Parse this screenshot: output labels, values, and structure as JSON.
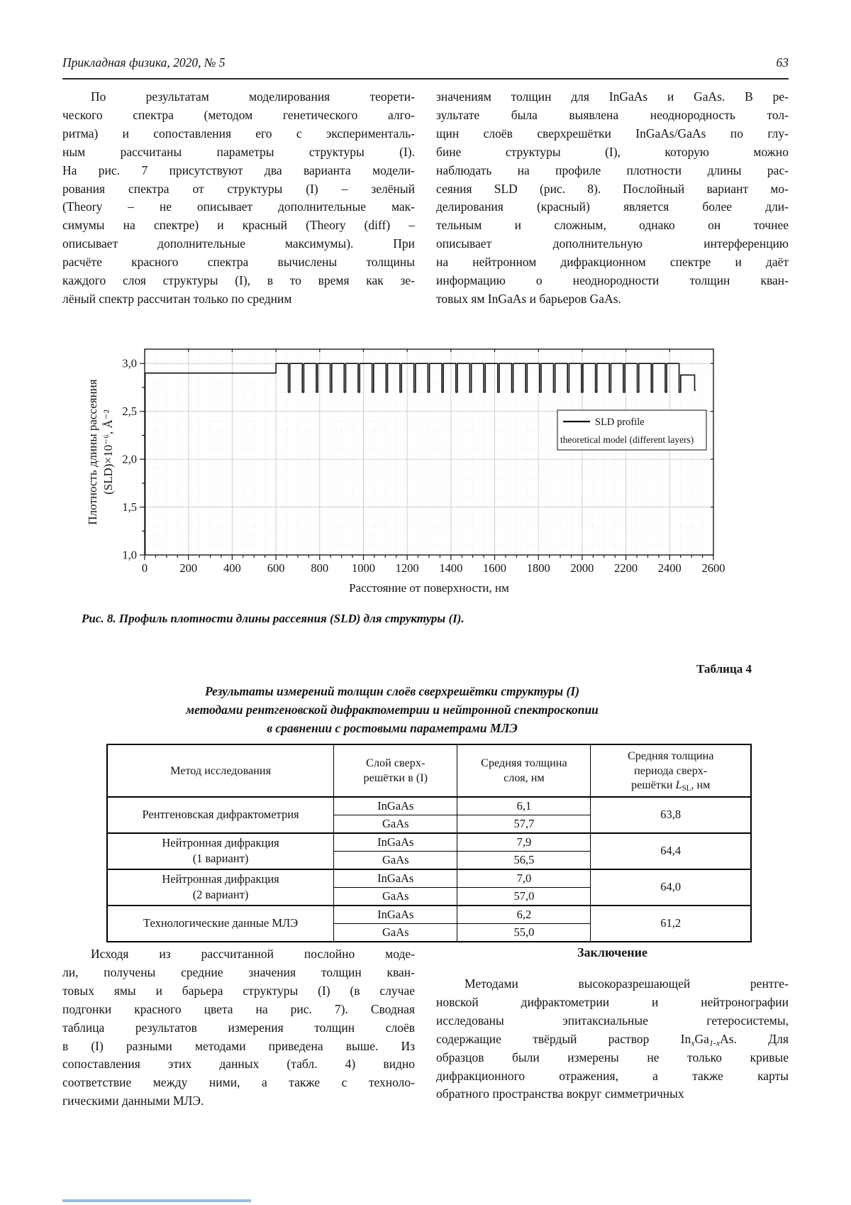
{
  "page": {
    "header_left": "Прикладная физика, 2020, № 5",
    "page_number": "63"
  },
  "top_left": {
    "lines": [
      "По результатам моделирования теорети-",
      "ческого спектра (методом генетического алго-",
      "ритма) и сопоставления его с эксперименталь-",
      "ным рассчитаны параметры структуры (I).",
      "На рис. 7 присутствуют два варианта модели-",
      "рования спектра от структуры (I) – зелёный",
      "(Theory – не описывает дополнительные мак-",
      "симумы на спектре) и красный (Theory (diff) –",
      "описывает дополнительные максимумы). При",
      "расчёте красного спектра вычислены толщины",
      "каждого слоя структуры (I), в то время как зе-",
      "лёный спектр рассчитан только по средним"
    ]
  },
  "top_right": {
    "lines": [
      "значениям толщин для InGaAs и GaAs. В ре-",
      "зультате была выявлена неоднородность тол-",
      "щин слоёв сверхрешётки InGaAs/GaAs по глу-",
      "бине структуры (I), которую можно",
      "наблюдать на профиле плотности длины рас-",
      "сеяния SLD (рис. 8). Послойный вариант мо-",
      "делирования (красный) является более дли-",
      "тельным и сложным, однако он точнее",
      "описывает дополнительную интерференцию",
      "на нейтронном дифракционном спектре и даёт",
      "информацию о неоднородности толщин кван-",
      "товых ям InGaAs и барьеров GaAs."
    ]
  },
  "figure": {
    "caption": "Рис. 8. Профиль плотности длины рассеяния (SLD) для структуры (I)."
  },
  "chart_data": {
    "type": "line",
    "title": "",
    "xlabel": "Расстояние от поверхности, нм",
    "ylabel": "Плотность длины рассеяния (SLD)×10⁻⁶, Å⁻²",
    "ylabel_lines": [
      "Плотность длины рассеяния",
      "(SLD)×10⁻⁶, Å⁻²"
    ],
    "xlim": [
      0,
      2600
    ],
    "ylim": [
      1.0,
      3.15
    ],
    "x_ticks": [
      0,
      200,
      400,
      600,
      800,
      1000,
      1200,
      1400,
      1600,
      1800,
      2000,
      2200,
      2400,
      2600
    ],
    "y_ticks": [
      1.0,
      1.5,
      2.0,
      2.5,
      3.0
    ],
    "grid": true,
    "legend": {
      "position": "inside-right",
      "line1": "SLD profile",
      "line2": "theoretical model (different layers)"
    },
    "line_color": "#101010",
    "profile": {
      "description": "SLD depth profile: GaAs cap 0–600 nm at 2.9; InGaAs/GaAs superlattice 600–2450 nm, 29 periods of 63.8 nm, GaAs barriers at 3.0 with narrow InGaAs wells dipping to 2.7; buffer plateau 2.88 to 2514 nm; tail drop to 2.72 at 2520 nm",
      "cap": {
        "x0": 2,
        "x1": 600,
        "sld": 2.9
      },
      "superlattice": {
        "x0": 600,
        "n_periods": 29,
        "period_nm": 63.8,
        "barrier_sld": 3.0,
        "well_sld": 2.7,
        "well_width_nm": 7
      },
      "buffer": {
        "sld": 2.88,
        "x1": 2514
      },
      "tail": {
        "sld": 2.72,
        "x1": 2520
      }
    }
  },
  "table": {
    "label": "Таблица 4",
    "title_lines": [
      "Результаты измерений толщин слоёв сверхрешётки структуры (I)",
      "методами рентгеновской дифрактометрии и нейтронной спектроскопии",
      "в сравнении с ростовыми параметрами МЛЭ"
    ],
    "headers": [
      "Метод исследования",
      [
        "Слой сверх-",
        {
          "br": true
        },
        "решётки в (I)"
      ],
      [
        "Средняя толщина",
        {
          "br": true
        },
        "слоя, нм"
      ],
      [
        "Средняя толщина",
        {
          "br": true
        },
        "периода сверх-",
        {
          "br": true
        },
        "решётки ",
        {
          "text": "L",
          "i": true
        },
        {
          "sub": "SL"
        },
        ", нм"
      ]
    ],
    "rows": [
      {
        "method_lines": [
          "Рентгеновская дифрактометрия"
        ],
        "layers": [
          {
            "name": "InGaAs",
            "thickness": "6,1"
          },
          {
            "name": "GaAs",
            "thickness": "57,7"
          }
        ],
        "period": "63,8"
      },
      {
        "method_lines": [
          "Нейтронная дифракция",
          "(1 вариант)"
        ],
        "layers": [
          {
            "name": "InGaAs",
            "thickness": "7,9"
          },
          {
            "name": "GaAs",
            "thickness": "56,5"
          }
        ],
        "period": "64,4"
      },
      {
        "method_lines": [
          "Нейтронная дифракция",
          "(2 вариант)"
        ],
        "layers": [
          {
            "name": "InGaAs",
            "thickness": "7,0"
          },
          {
            "name": "GaAs",
            "thickness": "57,0"
          }
        ],
        "period": "64,0"
      },
      {
        "method_lines": [
          "Технологические данные МЛЭ"
        ],
        "layers": [
          {
            "name": "InGaAs",
            "thickness": "6,2"
          },
          {
            "name": "GaAs",
            "thickness": "55,0"
          }
        ],
        "period": "61,2"
      }
    ]
  },
  "bottom_left": {
    "lines": [
      "Исходя из рассчитанной послойно моде-",
      "ли, получены средние значения толщин кван-",
      "товых ямы и барьера структуры (I) (в случае",
      "подгонки красного цвета на рис. 7). Сводная",
      "таблица результатов измерения толщин слоёв",
      "в (I) разными методами приведена выше. Из",
      "сопоставления этих данных (табл. 4) видно",
      "соответствие между ними, а также с техноло-",
      "гическими данными МЛЭ."
    ]
  },
  "bottom_right": {
    "heading": "Заключение",
    "lines": [
      "Методами высокоразрешающей рентге-",
      "новской дифрактометрии и нейтронографии",
      "исследованы эпитаксиальные гетеросистемы,",
      [
        "содержащие твёрдый раствор In",
        {
          "sub": "x",
          "i": true
        },
        "Ga",
        {
          "sub": "1-x",
          "i": true
        },
        "As. Для"
      ],
      "образцов были измерены не только кривые",
      "дифракционного отражения, а также карты",
      "обратного пространства вокруг симметричных"
    ]
  }
}
